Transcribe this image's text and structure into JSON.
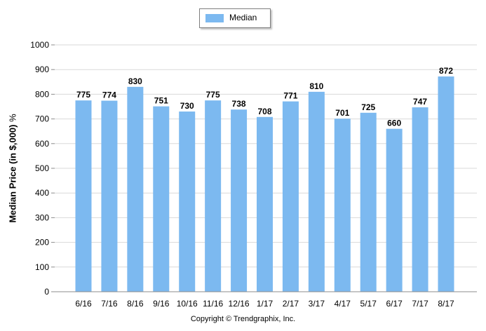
{
  "chart_data": {
    "type": "bar",
    "categories": [
      "6/16",
      "7/16",
      "8/16",
      "9/16",
      "10/16",
      "11/16",
      "12/16",
      "1/17",
      "2/17",
      "3/17",
      "4/17",
      "5/17",
      "6/17",
      "7/17",
      "8/17"
    ],
    "series": [
      {
        "name": "Median",
        "values": [
          775,
          774,
          830,
          751,
          730,
          775,
          738,
          708,
          771,
          810,
          701,
          725,
          660,
          747,
          872
        ]
      }
    ],
    "ylabel": "Median Price (in $,000)",
    "ylabel_unit": "%",
    "ylim": [
      0,
      1000
    ],
    "yticks": [
      "0",
      "100",
      "200",
      "300",
      "400",
      "500",
      "600",
      "700",
      "800",
      "900",
      "1000"
    ],
    "grid": true,
    "legend_position": "top-center",
    "bar_color": "#7cb9f0",
    "grid_color": "#d9d9d9"
  },
  "footer": {
    "copyright": "Copyright © Trendgraphix, Inc."
  }
}
